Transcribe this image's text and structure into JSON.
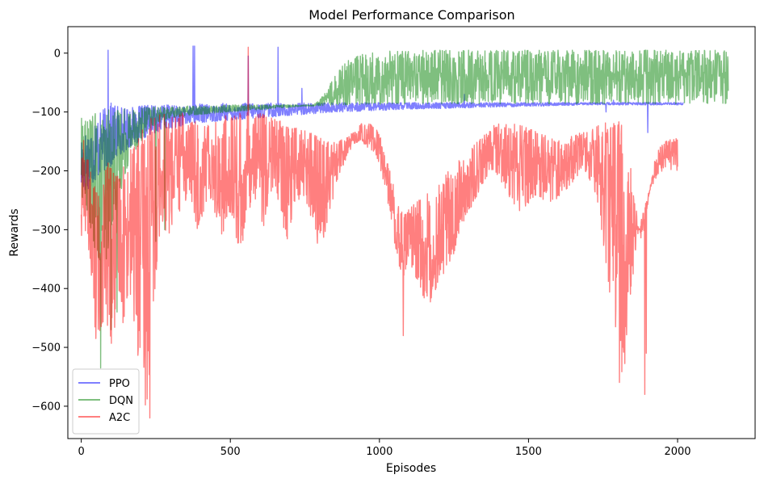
{
  "chart_data": {
    "type": "line",
    "title": "Model Performance Comparison",
    "xlabel": "Episodes",
    "ylabel": "Rewards",
    "xlim": [
      -45,
      2260
    ],
    "ylim": [
      -655,
      45
    ],
    "xticks": [
      0,
      500,
      1000,
      1500,
      2000
    ],
    "yticks": [
      0,
      -100,
      -200,
      -300,
      -400,
      -500,
      -600
    ],
    "ytick_labels": [
      "0",
      "−100",
      "−200",
      "−300",
      "−400",
      "−500",
      "−600"
    ],
    "grid": false,
    "legend_position": "lower-left",
    "series": [
      {
        "name": "PPO",
        "color": "#0000ff",
        "opacity": 0.5,
        "x_end": 2020,
        "episode_step": 25,
        "min": [
          -240,
          -230,
          -215,
          -200,
          -195,
          -175,
          -165,
          -155,
          -150,
          -140,
          -135,
          -130,
          -128,
          -125,
          -122,
          -120,
          -118,
          -117,
          -116,
          -115,
          -114,
          -113,
          -112,
          -111,
          -110,
          -109,
          -108,
          -107,
          -106,
          -105,
          -104,
          -103,
          -102,
          -101,
          -100,
          -100,
          -99,
          -99,
          -98,
          -98,
          -97,
          -97,
          -96,
          -96,
          -95,
          -95,
          -95,
          -94,
          -94,
          -94,
          -93,
          -93,
          -93,
          -92,
          -92,
          -92,
          -91,
          -91,
          -91,
          -90,
          -90,
          -90,
          -90,
          -89,
          -89,
          -89,
          -89,
          -88,
          -88,
          -88,
          -88,
          -88,
          -88,
          -88,
          -88,
          -88,
          -88,
          -88,
          -88,
          -88,
          -88
        ],
        "max": [
          -140,
          -130,
          -110,
          -95,
          -90,
          -88,
          -95,
          -92,
          -90,
          -88,
          -90,
          -88,
          -88,
          -90,
          -92,
          -88,
          -86,
          -88,
          -90,
          -85,
          -88,
          -90,
          -85,
          -86,
          -88,
          -85,
          -84,
          -86,
          -88,
          -85,
          -84,
          -86,
          -85,
          -84,
          -85,
          -84,
          -85,
          -84,
          -84,
          -85,
          -84,
          -84,
          -85,
          -84,
          -84,
          -84,
          -85,
          -84,
          -84,
          -84,
          -84,
          -84,
          -84,
          -84,
          -84,
          -84,
          -84,
          -84,
          -84,
          -84,
          -84,
          -84,
          -84,
          -84,
          -84,
          -84,
          -84,
          -84,
          -84,
          -84,
          -84,
          -84,
          -84,
          -84,
          -84,
          -84,
          -84,
          -84,
          -84,
          -84,
          -84
        ],
        "spikes": [
          [
            90,
            5
          ],
          [
            100,
            -85
          ],
          [
            375,
            12
          ],
          [
            380,
            12
          ],
          [
            560,
            -5
          ],
          [
            660,
            10
          ],
          [
            740,
            -60
          ],
          [
            1110,
            -95
          ],
          [
            1285,
            -70
          ],
          [
            1760,
            -100
          ],
          [
            1785,
            -80
          ],
          [
            1900,
            -135
          ]
        ]
      },
      {
        "name": "DQN",
        "color": "#008000",
        "opacity": 0.5,
        "x_end": 2170,
        "episode_step": 25,
        "min": [
          -240,
          -280,
          -350,
          -380,
          -300,
          -250,
          -200,
          -170,
          -150,
          -130,
          -120,
          -115,
          -110,
          -108,
          -106,
          -105,
          -104,
          -103,
          -102,
          -101,
          -100,
          -99,
          -98,
          -97,
          -96,
          -95,
          -94,
          -93,
          -92,
          -91,
          -90,
          -90,
          -89,
          -89,
          -88,
          -88,
          -88,
          -87,
          -87,
          -87,
          -87,
          -86,
          -86,
          -86,
          -86,
          -86,
          -86,
          -86,
          -86,
          -86,
          -86,
          -86,
          -86,
          -86,
          -86,
          -86,
          -86,
          -86,
          -86,
          -86,
          -86,
          -86,
          -86,
          -86,
          -86,
          -86,
          -86,
          -86,
          -86,
          -86,
          -86,
          -86,
          -86,
          -86,
          -86,
          -86,
          -86,
          -86,
          -86,
          -86,
          -86,
          -86,
          -86,
          -86,
          -86,
          -86,
          -86,
          -86
        ],
        "max": [
          -110,
          -115,
          -100,
          -98,
          -95,
          -95,
          -93,
          -92,
          -92,
          -92,
          -92,
          -92,
          -92,
          -92,
          -90,
          -90,
          -90,
          -90,
          -90,
          -88,
          -88,
          -88,
          -88,
          -88,
          -88,
          -88,
          -88,
          -88,
          -88,
          -88,
          -88,
          -88,
          -80,
          -60,
          -40,
          -20,
          -10,
          -5,
          0,
          0,
          5,
          5,
          5,
          5,
          5,
          5,
          5,
          5,
          5,
          5,
          5,
          5,
          5,
          5,
          5,
          5,
          5,
          5,
          5,
          5,
          5,
          5,
          5,
          5,
          5,
          5,
          5,
          5,
          5,
          5,
          5,
          5,
          5,
          5,
          5,
          5,
          5,
          5,
          5,
          5,
          5,
          5,
          5,
          5,
          5,
          5,
          5,
          5
        ],
        "spikes": [
          [
            65,
            -535
          ],
          [
            100,
            -470
          ],
          [
            120,
            -440
          ],
          [
            250,
            -320
          ],
          [
            280,
            -300
          ]
        ]
      },
      {
        "name": "A2C",
        "color": "#ff0000",
        "opacity": 0.5,
        "x_end": 2000,
        "episode_step": 10,
        "min": [
          -330,
          -290,
          -320,
          -350,
          -420,
          -500,
          -480,
          -460,
          -450,
          -470,
          -500,
          -480,
          -420,
          -400,
          -460,
          -440,
          -420,
          -400,
          -480,
          -520,
          -560,
          -600,
          -610,
          -540,
          -460,
          -380,
          -320,
          -280,
          -300,
          -320,
          -300,
          -280,
          -260,
          -270,
          -250,
          -260,
          -240,
          -250,
          -280,
          -300,
          -290,
          -270,
          -250,
          -240,
          -260,
          -280,
          -300,
          -320,
          -300,
          -280,
          -270,
          -290,
          -330,
          -360,
          -340,
          -310,
          -280,
          -250,
          -240,
          -260,
          -280,
          -300,
          -270,
          -250,
          -230,
          -220,
          -250,
          -280,
          -300,
          -320,
          -300,
          -280,
          -260,
          -250,
          -240,
          -250,
          -260,
          -280,
          -300,
          -320,
          -340,
          -320,
          -300,
          -280,
          -260,
          -240,
          -220,
          -200,
          -190,
          -180,
          -170,
          -160,
          -155,
          -150,
          -150,
          -155,
          -160,
          -165,
          -170,
          -175,
          -190,
          -210,
          -230,
          -260,
          -290,
          -320,
          -350,
          -370,
          -380,
          -370,
          -360,
          -370,
          -380,
          -390,
          -400,
          -420,
          -430,
          -425,
          -410,
          -400,
          -390,
          -380,
          -370,
          -360,
          -350,
          -340,
          -320,
          -300,
          -290,
          -280,
          -270,
          -260,
          -250,
          -240,
          -230,
          -220,
          -210,
          -200,
          -200,
          -205,
          -210,
          -220,
          -230,
          -240,
          -250,
          -260,
          -270,
          -270,
          -265,
          -260,
          -255,
          -250,
          -245,
          -240,
          -245,
          -250,
          -255,
          -260,
          -255,
          -250,
          -245,
          -240,
          -235,
          -230,
          -225,
          -220,
          -215,
          -210,
          -205,
          -200,
          -210,
          -220,
          -230,
          -250,
          -280,
          -320,
          -360,
          -400,
          -440,
          -480,
          -540,
          -580,
          -550,
          -480,
          -420,
          -380,
          -340,
          -300,
          -280,
          -260,
          -240,
          -230,
          -220,
          -210,
          -205,
          -200
        ],
        "max": [
          -150,
          -140,
          -170,
          -200,
          -220,
          -230,
          -240,
          -220,
          -200,
          -180,
          -190,
          -200,
          -210,
          -200,
          -190,
          -180,
          -170,
          -160,
          -150,
          -140,
          -130,
          -120,
          -115,
          -110,
          -105,
          -100,
          -98,
          -96,
          -100,
          -105,
          -110,
          -108,
          -105,
          -100,
          -100,
          -105,
          -110,
          -112,
          -115,
          -118,
          -120,
          -122,
          -120,
          -118,
          -115,
          -112,
          -110,
          -108,
          -106,
          -105,
          -104,
          -103,
          -102,
          -101,
          -100,
          -100,
          -100,
          -100,
          -100,
          -100,
          -102,
          -104,
          -106,
          -108,
          -110,
          -112,
          -114,
          -116,
          -118,
          -120,
          -122,
          -124,
          -126,
          -128,
          -130,
          -132,
          -134,
          -136,
          -138,
          -140,
          -142,
          -144,
          -146,
          -148,
          -150,
          -150,
          -150,
          -148,
          -146,
          -144,
          -140,
          -135,
          -130,
          -125,
          -120,
          -118,
          -118,
          -120,
          -125,
          -130,
          -140,
          -150,
          -170,
          -190,
          -210,
          -230,
          -250,
          -265,
          -275,
          -270,
          -265,
          -260,
          -255,
          -250,
          -245,
          -240,
          -235,
          -230,
          -225,
          -220,
          -215,
          -210,
          -205,
          -200,
          -195,
          -190,
          -185,
          -180,
          -175,
          -170,
          -165,
          -160,
          -155,
          -150,
          -145,
          -140,
          -135,
          -130,
          -125,
          -120,
          -118,
          -116,
          -115,
          -115,
          -116,
          -118,
          -120,
          -122,
          -124,
          -126,
          -128,
          -130,
          -132,
          -134,
          -136,
          -138,
          -140,
          -142,
          -144,
          -146,
          -148,
          -150,
          -148,
          -145,
          -142,
          -140,
          -138,
          -136,
          -134,
          -132,
          -130,
          -128,
          -126,
          -124,
          -122,
          -120,
          -118,
          -116,
          -114,
          -112,
          -110,
          -115,
          -120,
          -140,
          -180,
          -220,
          -260,
          -300,
          -320,
          -300,
          -260,
          -220,
          -190,
          -170,
          -160,
          -155,
          -150,
          -148,
          -146,
          -144,
          -142,
          -140,
          -140
        ],
        "spikes": [
          [
            560,
            10
          ],
          [
            1080,
            -480
          ],
          [
            1890,
            -580
          ],
          [
            1895,
            -510
          ],
          [
            230,
            -620
          ]
        ]
      }
    ]
  }
}
